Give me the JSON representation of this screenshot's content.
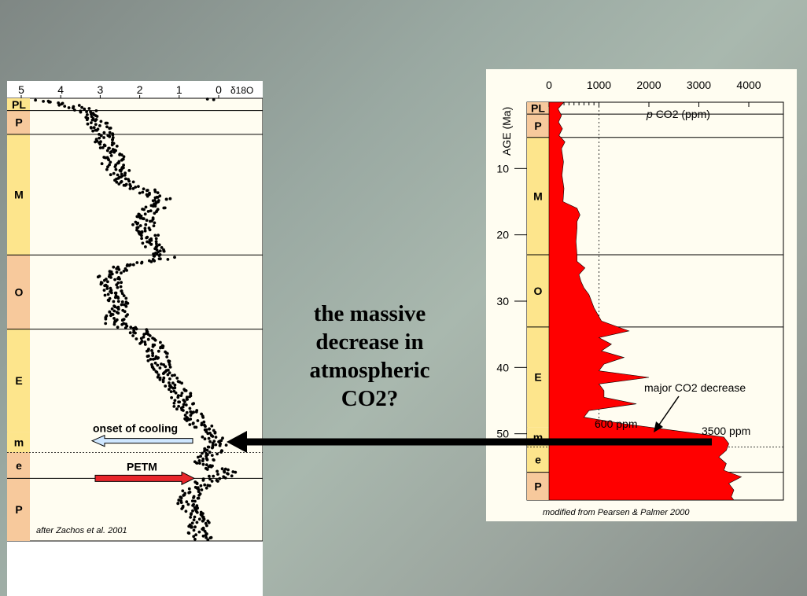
{
  "question": {
    "lines": [
      "the massive",
      "decrease in",
      "atmospheric",
      "CO2?"
    ]
  },
  "left_chart": {
    "axis_ticks": [
      "5",
      "4",
      "3",
      "2",
      "1",
      "0"
    ],
    "axis_label": "δ18O",
    "epochs": [
      {
        "label": "PL",
        "top": 0,
        "bottom": 1.8
      },
      {
        "label": "P",
        "top": 1.8,
        "bottom": 5.3
      },
      {
        "label": "M",
        "top": 5.3,
        "bottom": 23
      },
      {
        "label": "O",
        "top": 23,
        "bottom": 33.9
      },
      {
        "label": "E",
        "top": 33.9,
        "bottom": 49
      },
      {
        "label": "m",
        "top": 49,
        "bottom": 52
      },
      {
        "label": "e",
        "top": 52,
        "bottom": 55.8
      },
      {
        "label": "P",
        "top": 55.8,
        "bottom": 65
      }
    ],
    "annotations": {
      "onset": "onset of cooling",
      "petm": "PETM",
      "credit": "after Zachos et al. 2001"
    },
    "colors": {
      "onset_arrow": "#cfe7ff",
      "petm_arrow": "#e8262b",
      "epoch_yellow": "#fde58c",
      "epoch_peach": "#f7c99c"
    }
  },
  "right_chart": {
    "axis_ticks": [
      "0",
      "1000",
      "2000",
      "3000",
      "4000"
    ],
    "x_label_italic": "p",
    "x_label": "CO2 (ppm)",
    "y_label": "AGE (Ma)",
    "y_ticks": [
      "10",
      "20",
      "30",
      "40",
      "50"
    ],
    "epochs": [
      "PL",
      "P",
      "M",
      "O",
      "E",
      "m",
      "e",
      "P"
    ],
    "annotations": {
      "major": "major CO2 decrease",
      "low": "600 ppm",
      "high": "3500 ppm",
      "credit": "modified from Pearsen & Palmer 2000"
    },
    "colors": {
      "fill": "#ff0000"
    }
  },
  "chart_data": [
    {
      "type": "scatter",
      "title": "",
      "xlabel": "δ18O",
      "ylabel": "",
      "xlim": [
        5,
        0
      ],
      "ylim": [
        0,
        65
      ],
      "profile": [
        {
          "age": 0.2,
          "d18o": 4.6
        },
        {
          "age": 0.6,
          "d18o": 4.1
        },
        {
          "age": 1.2,
          "d18o": 3.6
        },
        {
          "age": 2.0,
          "d18o": 3.3
        },
        {
          "age": 3.0,
          "d18o": 3.1
        },
        {
          "age": 4.5,
          "d18o": 3.0
        },
        {
          "age": 6.0,
          "d18o": 2.9
        },
        {
          "age": 8.0,
          "d18o": 2.6
        },
        {
          "age": 9.5,
          "d18o": 2.7
        },
        {
          "age": 11.0,
          "d18o": 2.5
        },
        {
          "age": 12.5,
          "d18o": 2.3
        },
        {
          "age": 13.5,
          "d18o": 1.9
        },
        {
          "age": 14.5,
          "d18o": 1.5
        },
        {
          "age": 15.5,
          "d18o": 1.4
        },
        {
          "age": 17.0,
          "d18o": 1.9
        },
        {
          "age": 19.0,
          "d18o": 1.9
        },
        {
          "age": 21.0,
          "d18o": 1.7
        },
        {
          "age": 22.5,
          "d18o": 1.6
        },
        {
          "age": 23.5,
          "d18o": 1.3
        },
        {
          "age": 24.5,
          "d18o": 2.2
        },
        {
          "age": 25.0,
          "d18o": 2.5
        },
        {
          "age": 26.0,
          "d18o": 2.8
        },
        {
          "age": 27.5,
          "d18o": 2.7
        },
        {
          "age": 29.0,
          "d18o": 2.6
        },
        {
          "age": 31.0,
          "d18o": 2.5
        },
        {
          "age": 33.0,
          "d18o": 2.7
        },
        {
          "age": 34.0,
          "d18o": 2.1
        },
        {
          "age": 35.5,
          "d18o": 1.8
        },
        {
          "age": 37.0,
          "d18o": 1.6
        },
        {
          "age": 39.0,
          "d18o": 1.5
        },
        {
          "age": 41.0,
          "d18o": 1.3
        },
        {
          "age": 43.0,
          "d18o": 1.0
        },
        {
          "age": 45.0,
          "d18o": 0.9
        },
        {
          "age": 47.0,
          "d18o": 0.6
        },
        {
          "age": 49.0,
          "d18o": 0.3
        },
        {
          "age": 50.5,
          "d18o": 0.0
        },
        {
          "age": 52.0,
          "d18o": 0.2
        },
        {
          "age": 53.5,
          "d18o": 0.4
        },
        {
          "age": 55.0,
          "d18o": -0.2
        },
        {
          "age": 56.5,
          "d18o": 0.4
        },
        {
          "age": 58.0,
          "d18o": 0.7
        },
        {
          "age": 60.0,
          "d18o": 0.8
        },
        {
          "age": 62.0,
          "d18o": 0.5
        },
        {
          "age": 64.0,
          "d18o": 0.5
        },
        {
          "age": 65.0,
          "d18o": 0.4
        }
      ]
    },
    {
      "type": "area",
      "title": "",
      "xlabel": "p CO2 (ppm)",
      "ylabel": "AGE (Ma)",
      "xlim": [
        0,
        4000
      ],
      "ylim": [
        0,
        60
      ],
      "series": [
        {
          "points": [
            {
              "age": 0,
              "co2": 300
            },
            {
              "age": 1,
              "co2": 180
            },
            {
              "age": 2,
              "co2": 250
            },
            {
              "age": 3,
              "co2": 190
            },
            {
              "age": 4,
              "co2": 270
            },
            {
              "age": 5,
              "co2": 200
            },
            {
              "age": 6,
              "co2": 320
            },
            {
              "age": 7,
              "co2": 250
            },
            {
              "age": 9,
              "co2": 290
            },
            {
              "age": 11,
              "co2": 260
            },
            {
              "age": 13,
              "co2": 300
            },
            {
              "age": 15,
              "co2": 280
            },
            {
              "age": 16,
              "co2": 560
            },
            {
              "age": 17,
              "co2": 620
            },
            {
              "age": 18,
              "co2": 560
            },
            {
              "age": 19,
              "co2": 560
            },
            {
              "age": 21,
              "co2": 540
            },
            {
              "age": 23,
              "co2": 560
            },
            {
              "age": 24,
              "co2": 560
            },
            {
              "age": 25,
              "co2": 720
            },
            {
              "age": 26,
              "co2": 600
            },
            {
              "age": 27,
              "co2": 640
            },
            {
              "age": 28,
              "co2": 700
            },
            {
              "age": 29,
              "co2": 800
            },
            {
              "age": 31,
              "co2": 900
            },
            {
              "age": 33,
              "co2": 1050
            },
            {
              "age": 34.5,
              "co2": 1600
            },
            {
              "age": 35.5,
              "co2": 1000
            },
            {
              "age": 36.5,
              "co2": 1250
            },
            {
              "age": 37.5,
              "co2": 1050
            },
            {
              "age": 38.5,
              "co2": 1500
            },
            {
              "age": 39.5,
              "co2": 1100
            },
            {
              "age": 40.5,
              "co2": 1000
            },
            {
              "age": 41.5,
              "co2": 2000
            },
            {
              "age": 42.5,
              "co2": 1000
            },
            {
              "age": 43.5,
              "co2": 1100
            },
            {
              "age": 44.5,
              "co2": 1100
            },
            {
              "age": 45.5,
              "co2": 1750
            },
            {
              "age": 46.5,
              "co2": 800
            },
            {
              "age": 47.5,
              "co2": 700
            },
            {
              "age": 48.5,
              "co2": 1500
            },
            {
              "age": 49.5,
              "co2": 2500
            },
            {
              "age": 50.5,
              "co2": 3500
            },
            {
              "age": 51.5,
              "co2": 3600
            },
            {
              "age": 52.5,
              "co2": 3550
            },
            {
              "age": 53.5,
              "co2": 3400
            },
            {
              "age": 54.5,
              "co2": 3550
            },
            {
              "age": 55.5,
              "co2": 3500
            },
            {
              "age": 56.5,
              "co2": 3850
            },
            {
              "age": 57.5,
              "co2": 3600
            },
            {
              "age": 58.5,
              "co2": 3700
            },
            {
              "age": 59.5,
              "co2": 3650
            },
            {
              "age": 60,
              "co2": 3700
            }
          ]
        }
      ]
    }
  ]
}
